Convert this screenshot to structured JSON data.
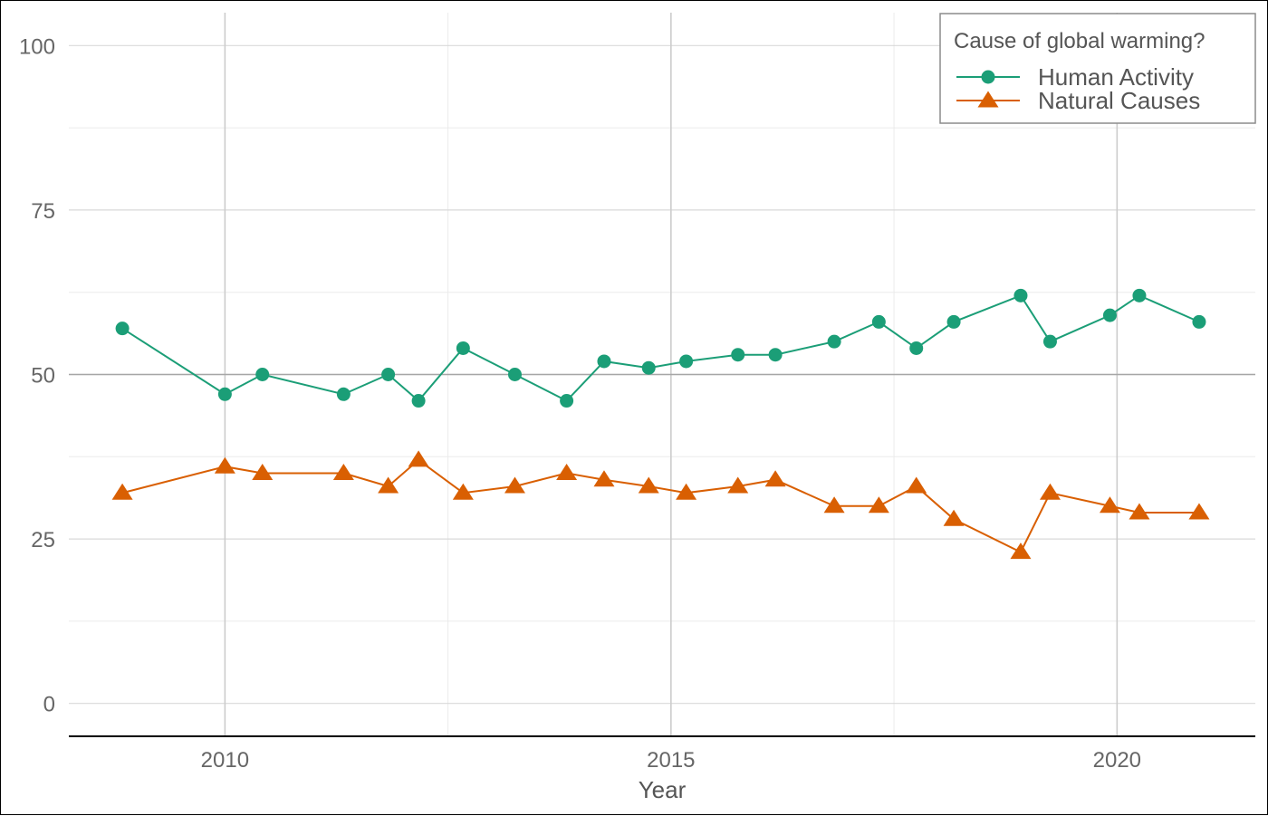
{
  "chart_data": {
    "type": "line",
    "xlabel": "Year",
    "ylabel": "",
    "xlim": [
      2008.25,
      2021.55
    ],
    "ylim": [
      -5,
      105
    ],
    "x_ticks": [
      "2010",
      "2015",
      "2020"
    ],
    "y_ticks": [
      "0",
      "25",
      "50",
      "75",
      "100"
    ],
    "reference_line_y": 50,
    "grid": true,
    "legend": {
      "title": "Cause of global warming?",
      "position": "top-right"
    },
    "series": [
      {
        "name": "Human Activity",
        "color": "#1b9e77",
        "marker": "circle",
        "x": [
          2008.85,
          2010.0,
          2010.42,
          2011.33,
          2011.83,
          2012.17,
          2012.67,
          2013.25,
          2013.83,
          2014.25,
          2014.75,
          2015.17,
          2015.75,
          2016.17,
          2016.83,
          2017.33,
          2017.75,
          2018.17,
          2018.92,
          2019.25,
          2019.92,
          2020.25,
          2020.92
        ],
        "y": [
          57,
          47,
          50,
          47,
          50,
          46,
          54,
          50,
          46,
          52,
          51,
          52,
          53,
          53,
          55,
          58,
          54,
          58,
          62,
          55,
          59,
          62,
          58
        ]
      },
      {
        "name": "Natural Causes",
        "color": "#d95f02",
        "marker": "triangle",
        "x": [
          2008.85,
          2010.0,
          2010.42,
          2011.33,
          2011.83,
          2012.17,
          2012.67,
          2013.25,
          2013.83,
          2014.25,
          2014.75,
          2015.17,
          2015.75,
          2016.17,
          2016.83,
          2017.33,
          2017.75,
          2018.17,
          2018.92,
          2019.25,
          2019.92,
          2020.25,
          2020.92
        ],
        "y": [
          32,
          36,
          35,
          35,
          33,
          37,
          32,
          33,
          35,
          34,
          33,
          32,
          33,
          34,
          30,
          30,
          33,
          28,
          23,
          32,
          30,
          29,
          29
        ]
      }
    ]
  }
}
